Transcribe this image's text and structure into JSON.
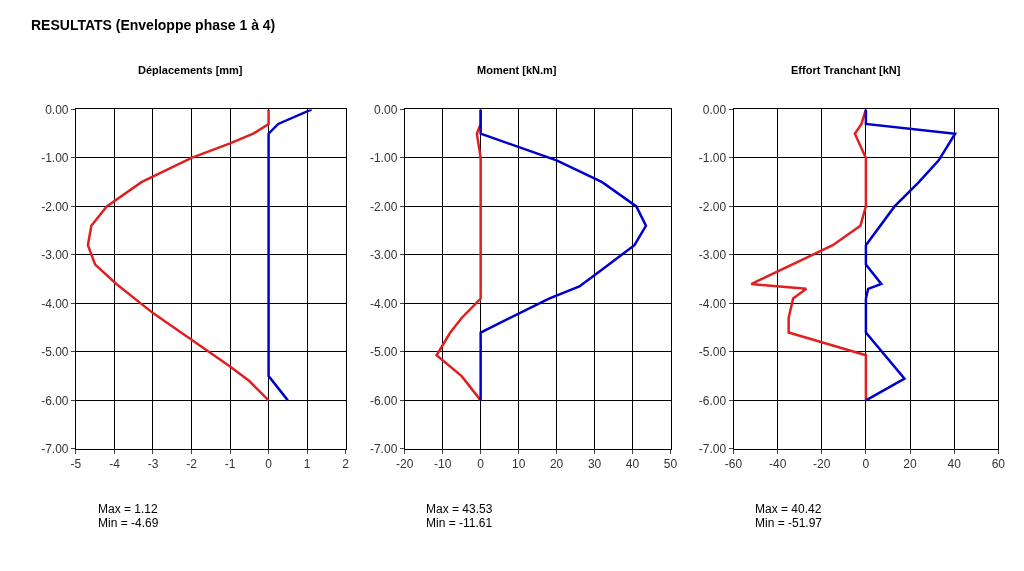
{
  "chart_data": [
    {
      "type": "line",
      "title": "Déplacements [mm]",
      "grid": true,
      "annotations": [
        "RESULTATS (Enveloppe phase 1 à 4)",
        "Max = 1.12",
        "Min = -4.69"
      ],
      "xlim": [
        -5,
        2
      ],
      "xticks": [
        -5,
        -4,
        -3,
        -2,
        -1,
        0,
        1,
        2
      ],
      "ylim": [
        -7,
        0
      ],
      "yticks": [
        {
          "value": 0,
          "label": "0.00"
        },
        {
          "value": -1,
          "label": "-1.00"
        },
        {
          "value": -2,
          "label": "-2.00"
        },
        {
          "value": -3,
          "label": "-3.00"
        },
        {
          "value": -4,
          "label": "-4.00"
        },
        {
          "value": -5,
          "label": "-5.00"
        },
        {
          "value": -6,
          "label": "-6.00"
        },
        {
          "value": -7,
          "label": "-7.00"
        }
      ],
      "series": [
        {
          "color": "#e02020",
          "x": [
            0,
            0,
            -0.4,
            -1.0,
            -2,
            -3.3,
            -4.2,
            -4.6,
            -4.69,
            -4.5,
            -3.95,
            -3.0,
            -2.0,
            -1.0,
            -0.5,
            0
          ],
          "values": [
            0,
            -0.3,
            -0.5,
            -0.7,
            -1,
            -1.5,
            -2,
            -2.4,
            -2.8,
            -3.2,
            -3.6,
            -4.2,
            -4.75,
            -5.3,
            -5.6,
            -6
          ]
        },
        {
          "color": "#0000cc",
          "x": [
            1.12,
            0.25,
            0,
            0,
            0.5
          ],
          "values": [
            0,
            -0.3,
            -0.5,
            -5.5,
            -6
          ]
        }
      ]
    },
    {
      "type": "line",
      "title": "Moment [kN.m]",
      "grid": true,
      "annotations": [
        "Max = 43.53",
        "Min = -11.61"
      ],
      "xlim": [
        -20,
        50
      ],
      "xticks": [
        -20,
        -10,
        0,
        10,
        20,
        30,
        40,
        50
      ],
      "ylim": [
        -7,
        0
      ],
      "yticks": [
        {
          "value": 0,
          "label": "0.00"
        },
        {
          "value": -1,
          "label": "-1.00"
        },
        {
          "value": -2,
          "label": "-2.00"
        },
        {
          "value": -3,
          "label": "-3.00"
        },
        {
          "value": -4,
          "label": "-4.00"
        },
        {
          "value": -5,
          "label": "-5.00"
        },
        {
          "value": -6,
          "label": "-6.00"
        },
        {
          "value": -7,
          "label": "-7.00"
        }
      ],
      "series": [
        {
          "color": "#e02020",
          "x": [
            0,
            0,
            -1,
            0,
            0,
            -5,
            -8,
            -11.61,
            -5,
            0
          ],
          "values": [
            0,
            -0.3,
            -0.5,
            -1,
            -3.9,
            -4.3,
            -4.6,
            -5.07,
            -5.5,
            -6
          ]
        },
        {
          "color": "#0000cc",
          "x": [
            0,
            0,
            20,
            32,
            41,
            43.53,
            40.5,
            32,
            26,
            18,
            0,
            0
          ],
          "values": [
            0,
            -0.5,
            -1.05,
            -1.5,
            -2,
            -2.4,
            -2.8,
            -3.3,
            -3.65,
            -3.9,
            -4.6,
            -6
          ]
        }
      ]
    },
    {
      "type": "line",
      "title": "Effort Tranchant [kN]",
      "grid": true,
      "annotations": [
        "Max = 40.42",
        "Min = -51.97"
      ],
      "xlim": [
        -60,
        60
      ],
      "xticks": [
        -60,
        -40,
        -20,
        0,
        20,
        40,
        60
      ],
      "ylim": [
        -7,
        0
      ],
      "yticks": [
        {
          "value": 0,
          "label": "0.00"
        },
        {
          "value": -1,
          "label": "-1.00"
        },
        {
          "value": -2,
          "label": "-2.00"
        },
        {
          "value": -3,
          "label": "-3.00"
        },
        {
          "value": -4,
          "label": "-4.00"
        },
        {
          "value": -5,
          "label": "-5.00"
        },
        {
          "value": -6,
          "label": "-6.00"
        },
        {
          "value": -7,
          "label": "-7.00"
        }
      ],
      "series": [
        {
          "color": "#e02020",
          "x": [
            0,
            -2,
            -5,
            0,
            0,
            -2.5,
            -15,
            -51.97,
            -27,
            -33,
            -35,
            -35,
            0,
            0
          ],
          "values": [
            0,
            -0.3,
            -0.5,
            -1,
            -2,
            -2.4,
            -2.8,
            -3.6,
            -3.7,
            -3.9,
            -4.3,
            -4.6,
            -5.07,
            -6
          ]
        },
        {
          "color": "#0000cc",
          "x": [
            0,
            0,
            40.42,
            33,
            24,
            13,
            0,
            0,
            7,
            1,
            0,
            0,
            17.5,
            0
          ],
          "values": [
            0,
            -0.3,
            -0.5,
            -1.05,
            -1.5,
            -2,
            -2.8,
            -3.2,
            -3.6,
            -3.7,
            -3.9,
            -4.6,
            -5.55,
            -6
          ]
        }
      ]
    }
  ]
}
